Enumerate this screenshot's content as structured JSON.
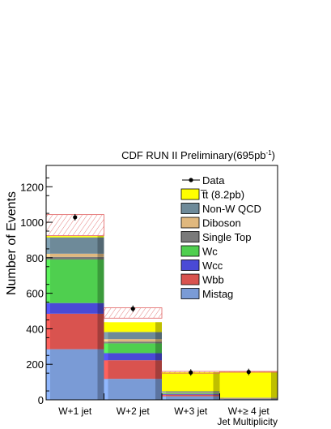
{
  "chart_data": {
    "type": "bar",
    "stacked": true,
    "title": "CDF RUN II Preliminary(695pb",
    "title_sup": "-1",
    "title_close": ")",
    "ylabel": "Number of Events",
    "xlabel": "Jet Multiplicity",
    "ylim": [
      0,
      1320
    ],
    "yticks": [
      "0",
      "200",
      "400",
      "600",
      "800",
      "1000",
      "1200"
    ],
    "categories": [
      "W+1 jet",
      "W+2 jet",
      "W+3 jet",
      "W+≥ 4 jet"
    ],
    "series": [
      {
        "name": "Mistag",
        "color": "#7a9bd6",
        "values": [
          285,
          118,
          20,
          5
        ]
      },
      {
        "name": "Wbb",
        "color": "#d9534f",
        "values": [
          200,
          105,
          9,
          2
        ]
      },
      {
        "name": "Wcc",
        "color": "#4a4ad6",
        "values": [
          60,
          40,
          3,
          1
        ]
      },
      {
        "name": "Wc",
        "color": "#4fcf4f",
        "values": [
          245,
          55,
          4,
          1
        ]
      },
      {
        "name": "Single Top",
        "color": "#7a7a7a",
        "values": [
          15,
          10,
          2,
          0
        ]
      },
      {
        "name": "Diboson",
        "color": "#e0b87e",
        "values": [
          18,
          14,
          3,
          1
        ]
      },
      {
        "name": "Non-W QCD",
        "color": "#6e8a99",
        "values": [
          92,
          40,
          7,
          2
        ]
      },
      {
        "name": "t̅t (8.2pb)",
        "color": "#ffff00",
        "values": [
          7,
          55,
          107,
          146
        ]
      }
    ],
    "data": {
      "name": "Data",
      "values": [
        1028,
        513,
        154,
        157
      ]
    },
    "uncertainty_band": [
      [
        925,
        1043
      ],
      [
        460,
        518
      ],
      [
        150,
        160
      ],
      [
        158,
        160
      ]
    ]
  }
}
